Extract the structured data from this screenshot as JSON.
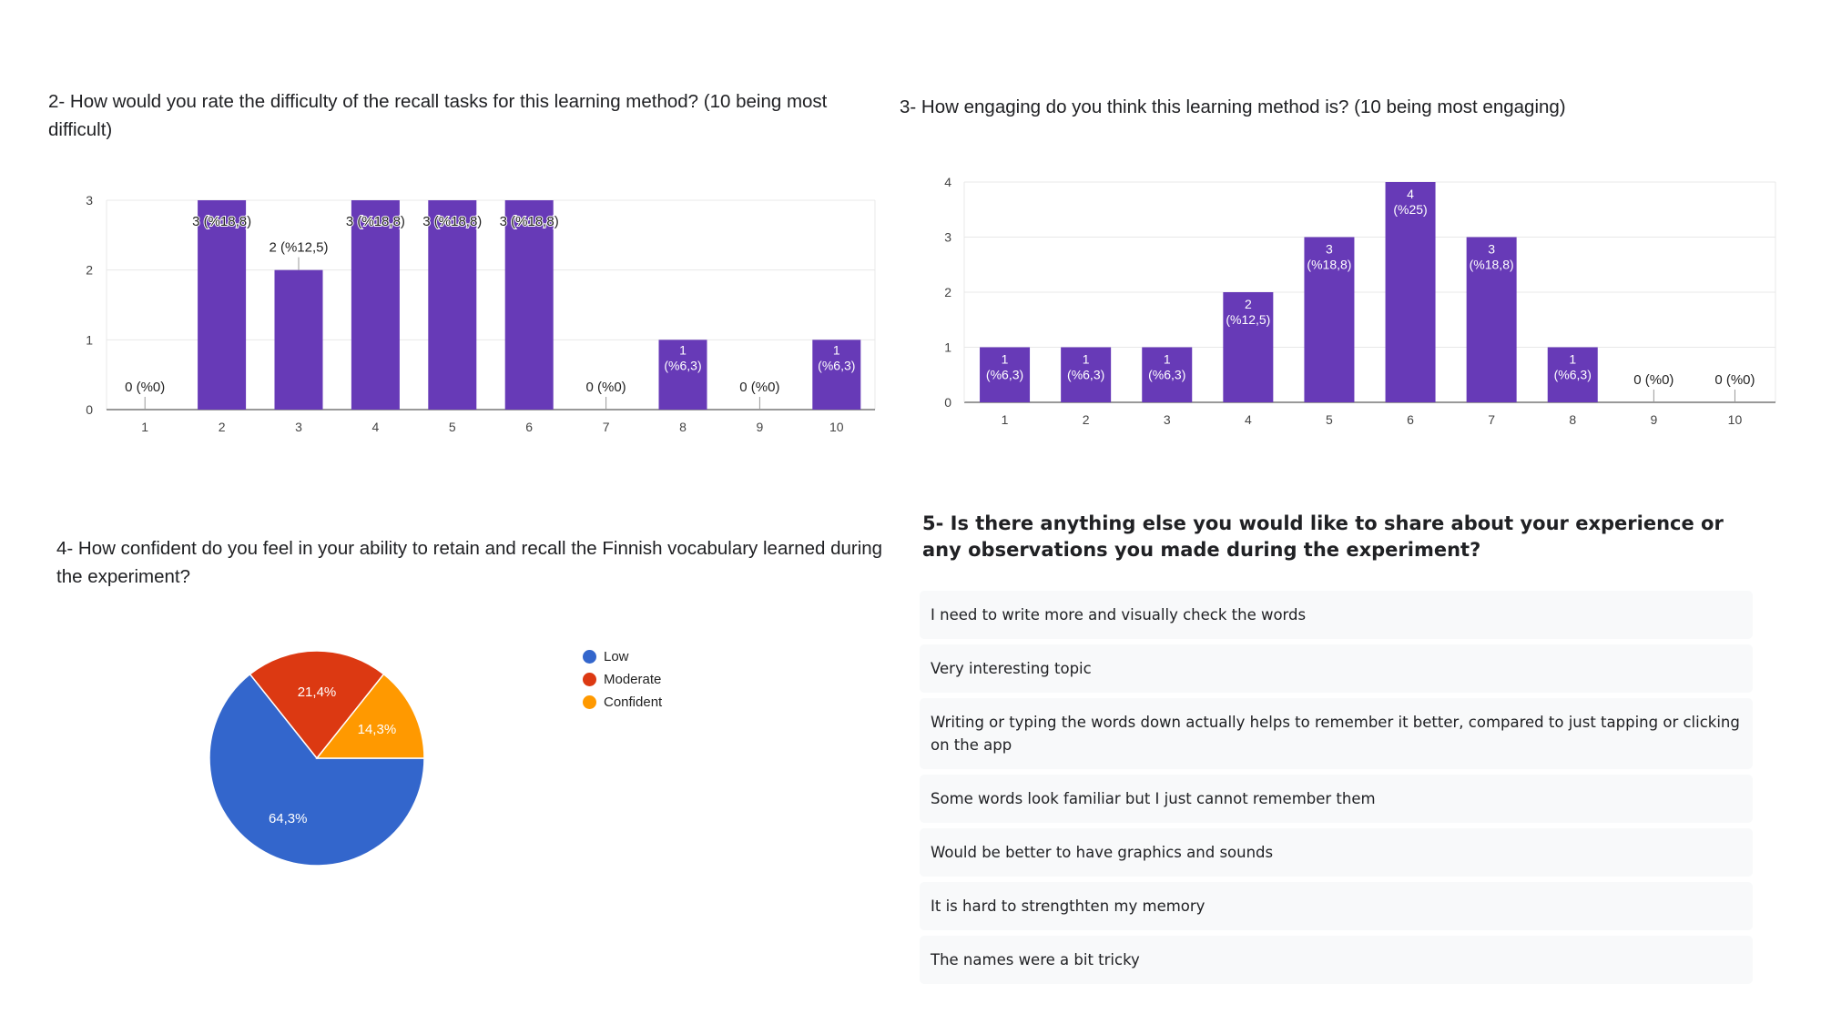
{
  "questions": {
    "q2": "2- How would you rate the difficulty of the recall tasks for this learning method? (10 being most difficult)",
    "q3": "3- How engaging do you think this learning method is? (10 being most engaging)",
    "q4": "4- How confident do you feel in your ability to retain and recall the Finnish vocabulary learned during the experiment?",
    "q5": "5- Is there anything else you would like to share about your experience or any observations you made during the experiment?"
  },
  "responses": [
    "I need to write more and visually check the words",
    "Very interesting topic",
    "Writing or typing the words down actually helps to remember it better, compared to just tapping or clicking on the app",
    "Some words look familiar but I just cannot remember them",
    "Would be better to have graphics and sounds",
    "It is hard to strengthten my memory",
    "The names were a bit tricky"
  ],
  "colors": {
    "bar": "#673ab7",
    "grid": "#e8e8e8",
    "low": "#3366cc",
    "moderate": "#dc3912",
    "confident": "#ff9900"
  },
  "chart_data": [
    {
      "type": "bar",
      "categories": [
        "1",
        "2",
        "3",
        "4",
        "5",
        "6",
        "7",
        "8",
        "9",
        "10"
      ],
      "values": [
        0,
        3,
        2,
        3,
        3,
        3,
        0,
        1,
        0,
        1
      ],
      "data_labels": [
        "0 (%0)",
        "3 (%18,8)",
        "2 (%12,5)",
        "3 (%18,8)",
        "3 (%18,8)",
        "3 (%18,8)",
        "0 (%0)",
        "1 (%6,3)",
        "0 (%0)",
        "1 (%6,3)"
      ],
      "ylim": [
        0,
        3
      ],
      "yticks": [
        "0",
        "1",
        "2",
        "3"
      ],
      "grid": true
    },
    {
      "type": "bar",
      "categories": [
        "1",
        "2",
        "3",
        "4",
        "5",
        "6",
        "7",
        "8",
        "9",
        "10"
      ],
      "values": [
        1,
        1,
        1,
        2,
        3,
        4,
        3,
        1,
        0,
        0
      ],
      "data_labels": [
        "1 (%6,3)",
        "1 (%6,3)",
        "1 (%6,3)",
        "2 (%12,5)",
        "3 (%18,8)",
        "4 (%25)",
        "3 (%18,8)",
        "1 (%6,3)",
        "0 (%0)",
        "0 (%0)"
      ],
      "ylim": [
        0,
        4
      ],
      "yticks": [
        "0",
        "1",
        "2",
        "3",
        "4"
      ],
      "grid": true
    },
    {
      "type": "pie",
      "categories": [
        "Low",
        "Moderate",
        "Confident"
      ],
      "values": [
        64.3,
        21.4,
        14.3
      ],
      "data_labels": [
        "64,3%",
        "21,4%",
        "14,3%"
      ],
      "legend": "right"
    }
  ]
}
